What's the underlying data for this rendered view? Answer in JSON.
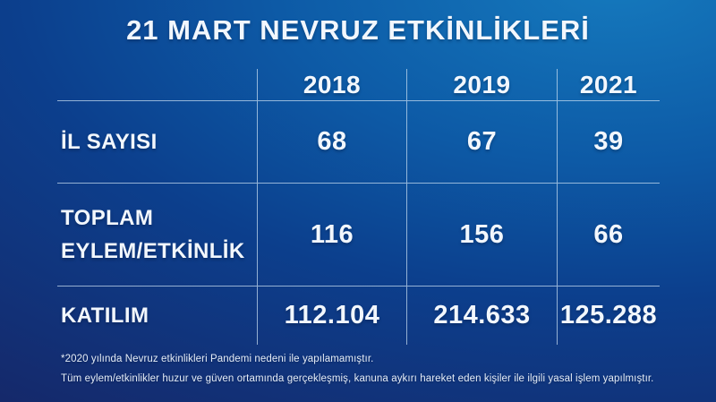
{
  "title": "21 MART NEVRUZ ETKİNLİKLERİ",
  "table": {
    "years": [
      "2018",
      "2019",
      "2021"
    ],
    "rows": [
      {
        "label": "İL SAYISI",
        "values": [
          "68",
          "67",
          "39"
        ]
      },
      {
        "label": "TOPLAM EYLEM/ETKİNLİK",
        "values": [
          "116",
          "156",
          "66"
        ]
      },
      {
        "label": "KATILIM",
        "values": [
          "112.104",
          "214.633",
          "125.288"
        ]
      }
    ]
  },
  "footnotes": [
    "*2020 yılında Nevruz etkinlikleri Pandemi nedeni ile yapılamamıştır.",
    "Tüm eylem/etkinlikler huzur ve güven ortamında gerçekleşmiş, kanuna aykırı hareket eden kişiler ile ilgili yasal işlem yapılmıştır."
  ],
  "colors": {
    "background_top_right": "#1579bd",
    "background_mid": "#0c3f8d",
    "background_bottom_left": "#15296b",
    "grid_line": "#cfe2f3",
    "text": "#f2f7fd"
  },
  "chart_data": {
    "type": "table",
    "title": "21 MART NEVRUZ ETKİNLİKLERİ",
    "columns": [
      "2018",
      "2019",
      "2021"
    ],
    "rows": [
      {
        "label": "İL SAYISI",
        "values": [
          68,
          67,
          39
        ]
      },
      {
        "label": "TOPLAM EYLEM/ETKİNLİK",
        "values": [
          116,
          156,
          66
        ]
      },
      {
        "label": "KATILIM",
        "values": [
          112104,
          214633,
          125288
        ]
      }
    ],
    "notes": [
      "*2020 yılında Nevruz etkinlikleri Pandemi nedeni ile yapılamamıştır.",
      "Tüm eylem/etkinlikler huzur ve güven ortamında gerçekleşmiş, kanuna aykırı hareket eden kişiler ile ilgili yasal işlem yapılmıştır."
    ]
  }
}
